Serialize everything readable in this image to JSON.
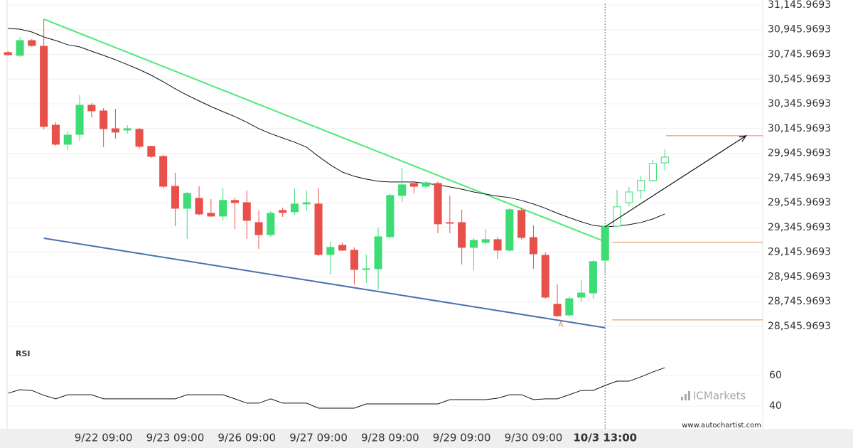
{
  "chart_data": {
    "type": "candlestick",
    "categories": [
      null,
      null,
      null,
      null,
      null,
      null,
      null,
      null,
      "9/22 09:00",
      null,
      null,
      null,
      null,
      null,
      "9/23 09:00",
      null,
      null,
      null,
      null,
      null,
      "9/26 09:00",
      null,
      null,
      null,
      null,
      null,
      "9/27 09:00",
      null,
      null,
      null,
      null,
      null,
      "9/28 09:00",
      null,
      null,
      null,
      null,
      null,
      "9/29 09:00",
      null,
      null,
      null,
      null,
      null,
      "9/30 09:00",
      null,
      null,
      null,
      null,
      null,
      "10/3 13:00",
      null,
      null,
      null,
      null,
      null
    ],
    "open": [
      30761,
      30738,
      30858,
      30812,
      30174,
      30019,
      30099,
      30335,
      30289,
      30145,
      30134,
      30140,
      30002,
      29921,
      29679,
      29501,
      29582,
      29461,
      29438,
      29565,
      29547,
      29386,
      29288,
      29484,
      29473,
      29536,
      29536,
      29127,
      29202,
      29162,
      29006,
      29012,
      29271,
      29605,
      29702,
      29679,
      29702,
      29386,
      29386,
      29185,
      29225,
      29248,
      29162,
      29484,
      29265,
      29121,
      28725,
      28638,
      28782,
      28816,
      29081,
      29357,
      29547,
      29645,
      29726,
      29869
    ],
    "high": [
      30772,
      30887,
      30870,
      31031,
      30197,
      30122,
      30416,
      30352,
      30312,
      30306,
      30174,
      30151,
      30007,
      29933,
      29789,
      29633,
      29679,
      29576,
      29662,
      29588,
      29645,
      29484,
      29478,
      29507,
      29662,
      29645,
      29668,
      29231,
      29225,
      29185,
      29127,
      29346,
      29622,
      29829,
      29720,
      29720,
      29720,
      29605,
      29490,
      29260,
      29334,
      29271,
      29501,
      29507,
      29363,
      29144,
      28885,
      28788,
      28920,
      29081,
      29369,
      29651,
      29674,
      29760,
      29892,
      29979
    ],
    "low": [
      30738,
      30726,
      30807,
      30140,
      30007,
      29973,
      30048,
      30237,
      29996,
      30065,
      30105,
      29979,
      29909,
      29662,
      29358,
      29254,
      29444,
      29432,
      29403,
      29334,
      29254,
      29173,
      29271,
      29432,
      29449,
      29478,
      29116,
      28966,
      29156,
      28885,
      28897,
      28839,
      29260,
      29553,
      29622,
      29668,
      29300,
      29300,
      29047,
      28999,
      29202,
      29093,
      29150,
      29248,
      29012,
      28771,
      28621,
      28627,
      28742,
      28771,
      28966,
      29346,
      29518,
      29576,
      29714,
      29806
    ],
    "close": [
      30743,
      30858,
      30818,
      30163,
      30019,
      30093,
      30335,
      30289,
      30145,
      30117,
      30145,
      30002,
      29921,
      29679,
      29501,
      29622,
      29455,
      29438,
      29565,
      29547,
      29403,
      29288,
      29461,
      29467,
      29536,
      29547,
      29127,
      29185,
      29162,
      29006,
      29012,
      29271,
      29605,
      29691,
      29679,
      29708,
      29375,
      29380,
      29185,
      29242,
      29248,
      29162,
      29490,
      29265,
      29133,
      28782,
      28632,
      28770,
      28816,
      29070,
      29357,
      29513,
      29633,
      29726,
      29863,
      29915
    ],
    "filled": [
      true,
      true,
      true,
      true,
      true,
      true,
      true,
      true,
      true,
      true,
      true,
      true,
      true,
      true,
      true,
      true,
      true,
      true,
      true,
      true,
      true,
      true,
      true,
      true,
      true,
      true,
      true,
      true,
      true,
      true,
      true,
      true,
      true,
      true,
      true,
      true,
      true,
      true,
      true,
      true,
      true,
      true,
      true,
      true,
      true,
      true,
      true,
      true,
      true,
      true,
      true,
      false,
      false,
      false,
      false,
      false
    ],
    "up_color": "#3ddc75",
    "down_color": "#e8514a",
    "xlim": [
      -0.05,
      63.2
    ],
    "ylim": [
      28425,
      31186
    ],
    "yticks": [
      {
        "value": 31145.9693,
        "label": "31,145.9693"
      },
      {
        "value": 30945.9693,
        "label": "30,945.9693"
      },
      {
        "value": 30745.9693,
        "label": "30,745.9693"
      },
      {
        "value": 30545.9693,
        "label": "30,545.9693"
      },
      {
        "value": 30345.9693,
        "label": "30,345.9693"
      },
      {
        "value": 30145.9693,
        "label": "30,145.9693"
      },
      {
        "value": 29945.9693,
        "label": "29,945.9693"
      },
      {
        "value": 29745.9693,
        "label": "29,745.9693"
      },
      {
        "value": 29545.9693,
        "label": "29,545.9693"
      },
      {
        "value": 29345.9693,
        "label": "29,345.9693"
      },
      {
        "value": 29145.9693,
        "label": "29,145.9693"
      },
      {
        "value": 28945.9693,
        "label": "28,945.9693"
      },
      {
        "value": 28745.9693,
        "label": "28,745.9693"
      },
      {
        "value": 28545.9693,
        "label": "28,545.9693"
      }
    ],
    "grid": true,
    "moving_average": {
      "color": "#111111",
      "values": [
        30956,
        30950,
        30927,
        30887,
        30858,
        30824,
        30807,
        30772,
        30738,
        30703,
        30663,
        30623,
        30577,
        30525,
        30468,
        30416,
        30370,
        30324,
        30283,
        30243,
        30197,
        30145,
        30105,
        30070,
        30036,
        29996,
        29921,
        29852,
        29794,
        29760,
        29737,
        29720,
        29714,
        29714,
        29714,
        29702,
        29691,
        29674,
        29656,
        29633,
        29616,
        29599,
        29588,
        29565,
        29536,
        29501,
        29461,
        29426,
        29392,
        29363,
        29352,
        29357,
        29369,
        29386,
        29415,
        29455
      ]
    },
    "trend_lines": [
      {
        "color": "#4ee87a",
        "x": [
          3,
          50
        ],
        "values": [
          31031,
          29231
        ]
      },
      {
        "color": "#4a72b0",
        "x": [
          3,
          50
        ],
        "values": [
          29259,
          28535
        ]
      }
    ],
    "arrow": {
      "color": "#111111",
      "x": [
        50,
        61.8
      ],
      "values": [
        29352,
        30088
      ]
    },
    "levels": [
      {
        "value": 30088,
        "x_start": 55.1
      },
      {
        "value": 29225,
        "x_start": 50.6
      },
      {
        "value": 28598,
        "x_start": 50.6
      }
    ],
    "level_color": "#e8874f",
    "marker": {
      "label": "A",
      "x": 46.3,
      "value": 28563
    },
    "vertical_line_x": 50,
    "rsi": {
      "label": "RSI",
      "color": "#111111",
      "ylim": [
        25.1,
        77.7
      ],
      "yticks": [
        40,
        60
      ],
      "values": [
        48.4,
        50.7,
        50.2,
        47.0,
        44.7,
        47.4,
        47.4,
        47.4,
        44.7,
        44.7,
        44.7,
        44.7,
        44.7,
        44.7,
        44.7,
        47.4,
        47.4,
        47.4,
        47.4,
        44.7,
        41.9,
        41.9,
        44.7,
        41.9,
        41.9,
        41.9,
        38.6,
        38.6,
        38.6,
        38.6,
        41.4,
        41.4,
        41.4,
        41.4,
        41.4,
        41.4,
        41.4,
        44.2,
        44.2,
        44.2,
        44.2,
        45.1,
        47.4,
        47.4,
        44.2,
        44.7,
        44.7,
        47.4,
        50.2,
        50.2,
        53.5,
        56.3,
        56.3,
        59.1,
        62.3,
        65.1
      ]
    },
    "brand": "ICMarkets",
    "website": "www.autochartist.com"
  }
}
